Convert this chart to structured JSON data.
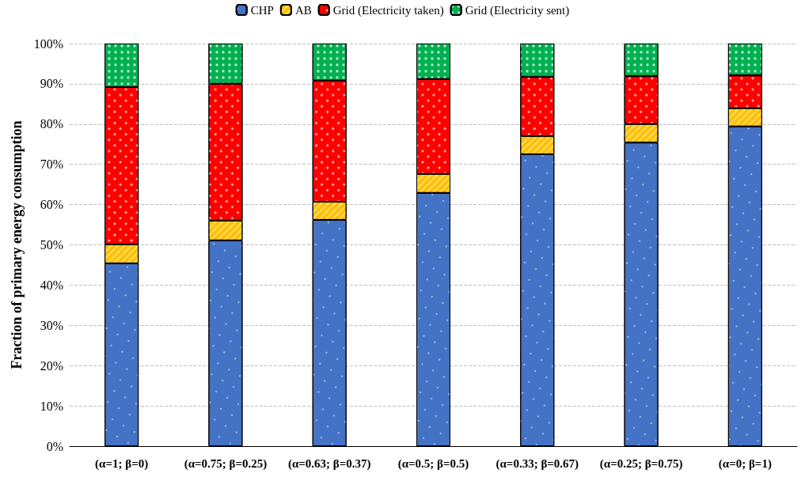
{
  "chart_data": {
    "type": "bar",
    "stacked": true,
    "ylabel": "Fraction of primary energy consumption",
    "categories": [
      "(α=1; β=0)",
      "(α=0.75; β=0.25)",
      "(α=0.63; β=0.37)",
      "(α=0.5; β=0.5)",
      "(α=0.33; β=0.67)",
      "(α=0.25; β=0.75)",
      "(α=0; β=1)"
    ],
    "series": [
      {
        "name": "CHP",
        "color": "#4472c4",
        "values": [
          45.4,
          51.1,
          56.2,
          62.9,
          72.5,
          75.4,
          79.4
        ]
      },
      {
        "name": "AB",
        "color": "#ffc000",
        "values": [
          4.7,
          4.9,
          4.5,
          4.7,
          4.5,
          4.6,
          4.5
        ]
      },
      {
        "name": "Grid (Electricity taken)",
        "color": "#ff0000",
        "values": [
          39.1,
          34.0,
          30.1,
          23.6,
          14.7,
          11.9,
          8.2
        ]
      },
      {
        "name": "Grid (Electricity sent)",
        "color": "#00b050",
        "values": [
          10.8,
          10.0,
          9.2,
          8.8,
          8.3,
          8.1,
          7.9
        ]
      }
    ],
    "ylim": [
      0,
      100
    ],
    "yticks": [
      {
        "value": 0,
        "label": "0%"
      },
      {
        "value": 10,
        "label": "10%"
      },
      {
        "value": 20,
        "label": "20%"
      },
      {
        "value": 30,
        "label": "30%"
      },
      {
        "value": 40,
        "label": "40%"
      },
      {
        "value": 50,
        "label": "50%"
      },
      {
        "value": 60,
        "label": "60%"
      },
      {
        "value": 70,
        "label": "70%"
      },
      {
        "value": 80,
        "label": "80%"
      },
      {
        "value": 90,
        "label": "90%"
      },
      {
        "value": 100,
        "label": "100%"
      }
    ],
    "grid": "y",
    "legend": "top"
  }
}
